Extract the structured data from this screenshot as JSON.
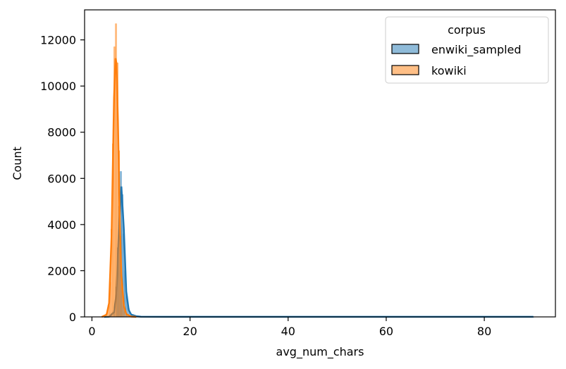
{
  "chart_data": {
    "type": "histogram",
    "xlabel": "avg_num_chars",
    "ylabel": "Count",
    "xlim": [
      -1.5,
      94.5
    ],
    "ylim": [
      0,
      13300
    ],
    "xticks": [
      0,
      20,
      40,
      60,
      80
    ],
    "yticks": [
      0,
      2000,
      4000,
      6000,
      8000,
      10000,
      12000
    ],
    "grid": false,
    "legend": {
      "title": "corpus",
      "placement": "top-right",
      "entries": [
        {
          "name": "enwiki_sampled",
          "color": "#1f77b4"
        },
        {
          "name": "kowiki",
          "color": "#ff7f0e"
        }
      ]
    },
    "series": [
      {
        "name": "enwiki_sampled",
        "color": "#1f77b4",
        "bins": [
          [
            2.5,
            2
          ],
          [
            3.0,
            5
          ],
          [
            3.5,
            15
          ],
          [
            4.0,
            60
          ],
          [
            4.5,
            250
          ],
          [
            5.0,
            1300
          ],
          [
            5.3,
            3000
          ],
          [
            5.6,
            4800
          ],
          [
            5.9,
            6300
          ],
          [
            6.2,
            5300
          ],
          [
            6.5,
            3600
          ],
          [
            6.8,
            2000
          ],
          [
            7.1,
            900
          ],
          [
            7.5,
            350
          ],
          [
            8.0,
            120
          ],
          [
            9.0,
            40
          ],
          [
            10.0,
            15
          ],
          [
            12.0,
            6
          ],
          [
            15.0,
            3
          ],
          [
            20.0,
            2
          ],
          [
            40.0,
            1
          ],
          [
            60.0,
            1
          ],
          [
            90.0,
            1
          ]
        ],
        "kde": [
          [
            2.5,
            0
          ],
          [
            3.5,
            10
          ],
          [
            4.5,
            200
          ],
          [
            5.0,
            1000
          ],
          [
            5.5,
            3800
          ],
          [
            6.0,
            5650
          ],
          [
            6.5,
            3800
          ],
          [
            7.0,
            1100
          ],
          [
            7.5,
            300
          ],
          [
            8.0,
            100
          ],
          [
            9.0,
            30
          ],
          [
            10.0,
            10
          ],
          [
            15.0,
            3
          ],
          [
            30.0,
            2
          ],
          [
            60.0,
            2
          ],
          [
            90.0,
            2
          ]
        ]
      },
      {
        "name": "kowiki",
        "color": "#ff7f0e",
        "bins": [
          [
            2.0,
            5
          ],
          [
            2.5,
            30
          ],
          [
            3.0,
            150
          ],
          [
            3.4,
            500
          ],
          [
            3.7,
            1500
          ],
          [
            4.0,
            3800
          ],
          [
            4.3,
            7500
          ],
          [
            4.6,
            11700
          ],
          [
            4.9,
            12700
          ],
          [
            5.2,
            11000
          ],
          [
            5.5,
            7200
          ],
          [
            5.8,
            3500
          ],
          [
            6.1,
            1400
          ],
          [
            6.5,
            500
          ],
          [
            7.0,
            150
          ],
          [
            7.5,
            40
          ],
          [
            8.0,
            10
          ],
          [
            9.0,
            3
          ]
        ],
        "kde": [
          [
            2.0,
            0
          ],
          [
            3.0,
            100
          ],
          [
            3.5,
            600
          ],
          [
            4.0,
            3500
          ],
          [
            4.5,
            9500
          ],
          [
            4.8,
            11200
          ],
          [
            5.0,
            11000
          ],
          [
            5.3,
            8500
          ],
          [
            5.7,
            4000
          ],
          [
            6.0,
            1800
          ],
          [
            6.5,
            500
          ],
          [
            7.0,
            120
          ],
          [
            8.0,
            15
          ],
          [
            9.0,
            0
          ]
        ]
      }
    ]
  }
}
